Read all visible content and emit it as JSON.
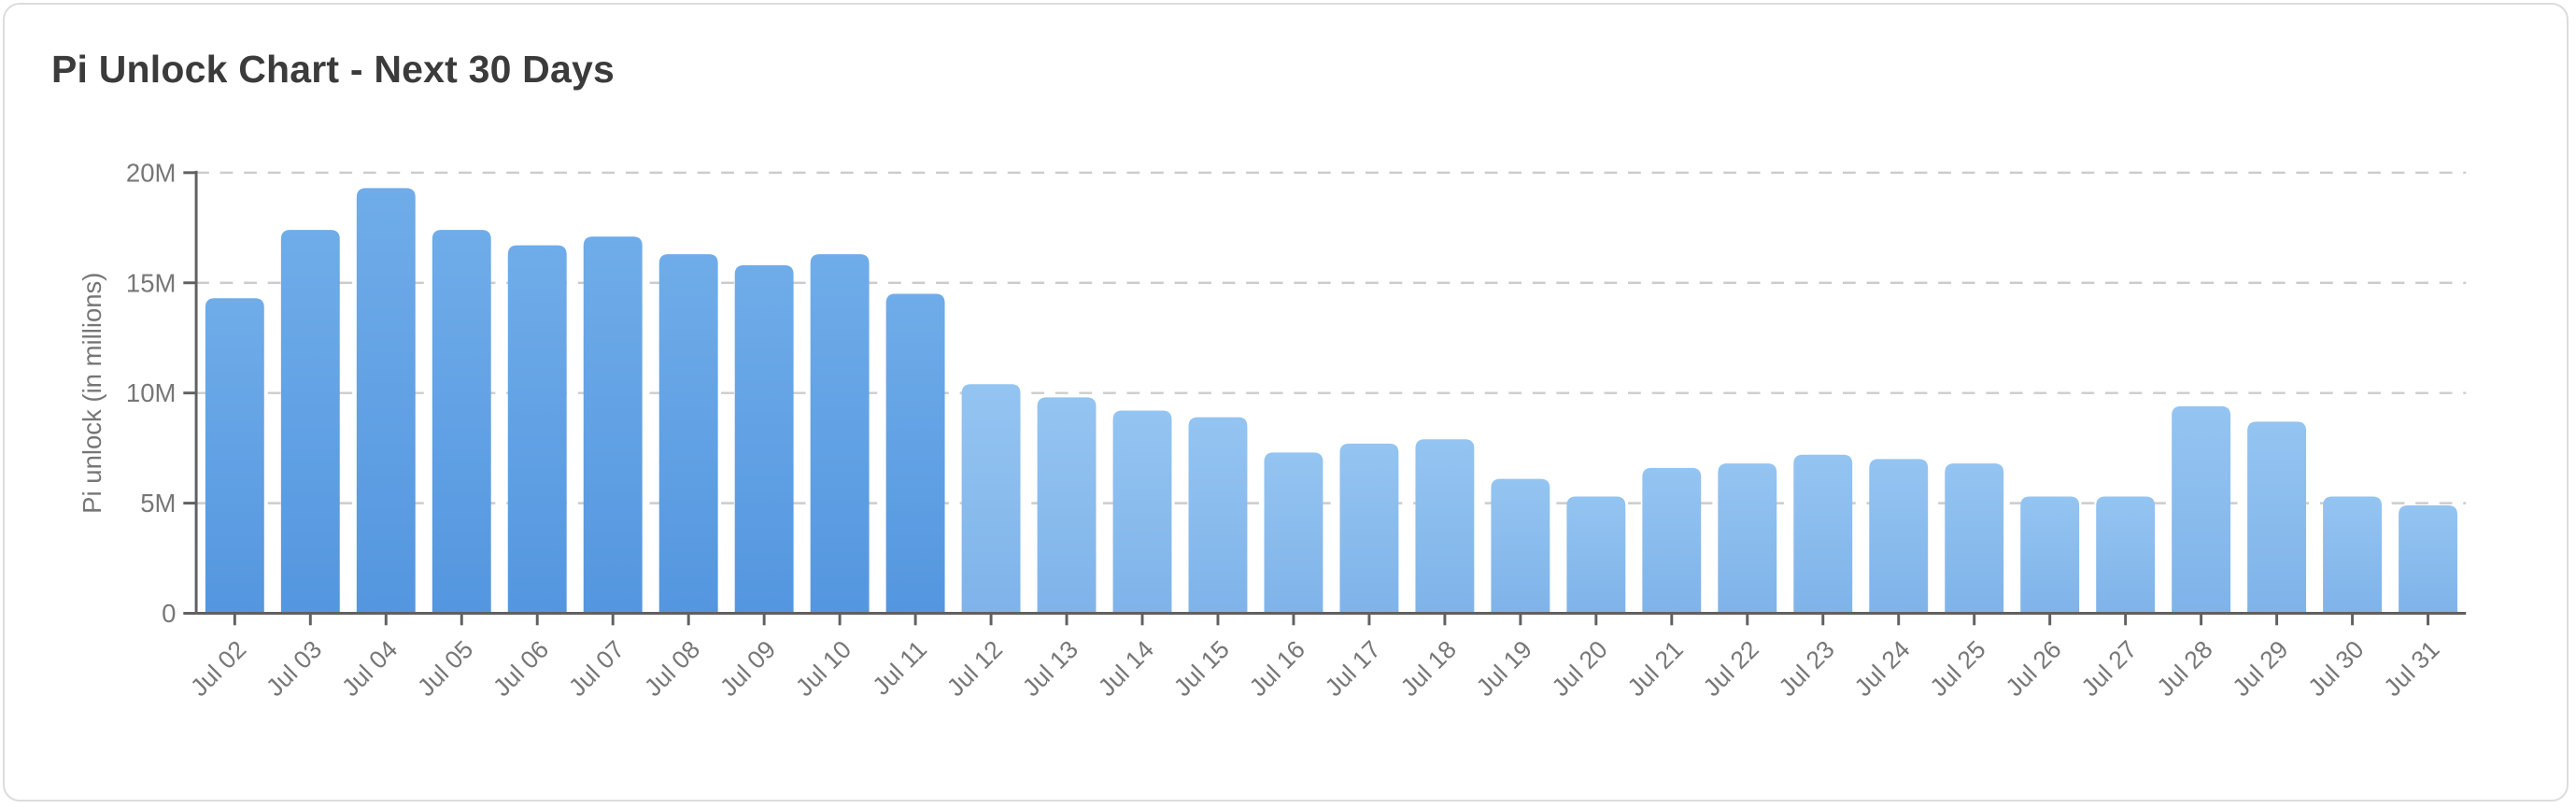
{
  "card": {
    "background": "#FFFFFF",
    "border_color": "#DCDCDC"
  },
  "chart_data": {
    "type": "bar",
    "title": "Pi Unlock Chart - Next 30 Days",
    "ylabel": "Pi unlock (in millions)",
    "xlabel": "",
    "categories": [
      "Jul 02",
      "Jul 03",
      "Jul 04",
      "Jul 05",
      "Jul 06",
      "Jul 07",
      "Jul 08",
      "Jul 09",
      "Jul 10",
      "Jul 11",
      "Jul 12",
      "Jul 13",
      "Jul 14",
      "Jul 15",
      "Jul 16",
      "Jul 17",
      "Jul 18",
      "Jul 19",
      "Jul 20",
      "Jul 21",
      "Jul 22",
      "Jul 23",
      "Jul 24",
      "Jul 25",
      "Jul 26",
      "Jul 27",
      "Jul 28",
      "Jul 29",
      "Jul 30",
      "Jul 31"
    ],
    "values": [
      14.3,
      17.4,
      19.3,
      17.4,
      16.7,
      17.1,
      16.3,
      15.8,
      16.3,
      14.5,
      10.4,
      9.8,
      9.2,
      8.9,
      7.3,
      7.7,
      7.9,
      6.1,
      5.3,
      6.6,
      6.8,
      7.2,
      7.0,
      6.8,
      5.3,
      5.3,
      9.4,
      8.7,
      5.3,
      4.9
    ],
    "value_unit": "millions",
    "ylim": [
      0,
      20
    ],
    "ytick_labels": [
      "0",
      "5M",
      "10M",
      "15M",
      "20M"
    ],
    "grid": {
      "horizontal": true,
      "style": "dashed",
      "color": "#CCCCCC",
      "behind_bars": true
    },
    "legend": {
      "visible": false
    },
    "style": {
      "dark_bar_count": 10,
      "bar_color_dark_top": "#6FACE9",
      "bar_color_dark_bottom": "#5496DF",
      "bar_color_light_top": "#94C4F1",
      "bar_color_light_bottom": "#7FB3E9",
      "axis_color": "#606060",
      "tick_label_color": "#777777",
      "axis_label_color": "#767676",
      "title_color": "#3B3B3B"
    }
  }
}
